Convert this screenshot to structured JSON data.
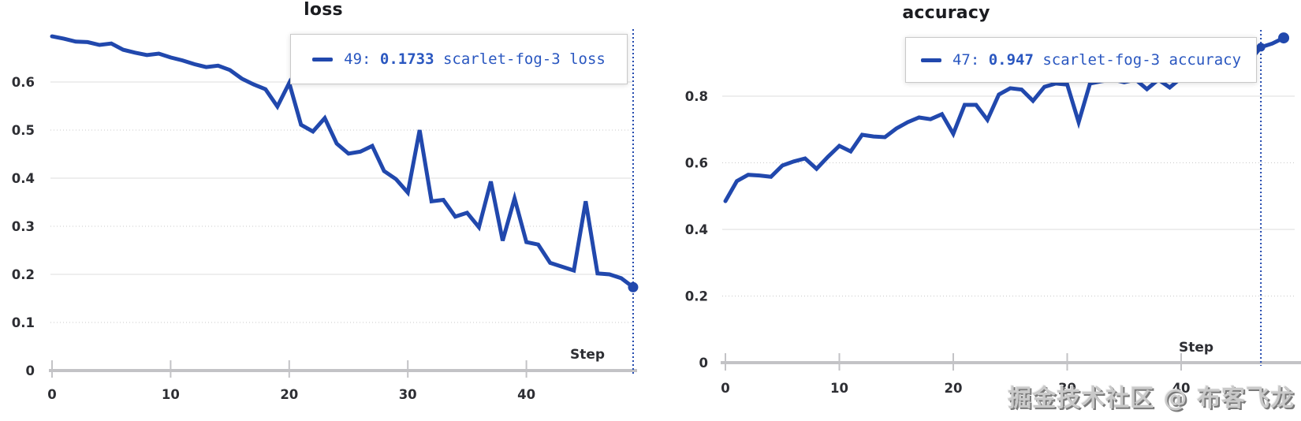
{
  "ui": {
    "watermark": "掘金技术社区 @ 布客飞龙"
  },
  "chart_data": [
    {
      "type": "line",
      "title": "loss",
      "xlabel": "Step",
      "legend_position": "tooltip-overlay",
      "grid": true,
      "color": "#2148ad",
      "xlim": [
        0,
        49.2
      ],
      "ylim": [
        0,
        0.72
      ],
      "xticks": [
        {
          "v": 0,
          "label": "0"
        },
        {
          "v": 10,
          "label": "10"
        },
        {
          "v": 20,
          "label": "20"
        },
        {
          "v": 30,
          "label": "30"
        },
        {
          "v": 40,
          "label": "40"
        }
      ],
      "yticks": [
        {
          "v": 0,
          "label": "0"
        },
        {
          "v": 0.1,
          "label": "0.1"
        },
        {
          "v": 0.2,
          "label": "0.2"
        },
        {
          "v": 0.3,
          "label": "0.3"
        },
        {
          "v": 0.4,
          "label": "0.4"
        },
        {
          "v": 0.5,
          "label": "0.5"
        },
        {
          "v": 0.6,
          "label": "0.6"
        }
      ],
      "crosshair_step": 49,
      "marker_steps": [
        49
      ],
      "tooltip": {
        "prefix": "49: ",
        "value": "0.1733",
        "suffix": " scarlet-fog-3 loss"
      },
      "series": [
        {
          "name": "scarlet-fog-3 loss",
          "x_range": [
            0,
            49
          ],
          "values": [
            0.695,
            0.69,
            0.684,
            0.683,
            0.677,
            0.68,
            0.667,
            0.661,
            0.656,
            0.659,
            0.651,
            0.645,
            0.637,
            0.631,
            0.634,
            0.625,
            0.607,
            0.595,
            0.585,
            0.549,
            0.598,
            0.511,
            0.497,
            0.525,
            0.472,
            0.451,
            0.455,
            0.467,
            0.415,
            0.398,
            0.37,
            0.5,
            0.352,
            0.355,
            0.32,
            0.328,
            0.298,
            0.393,
            0.27,
            0.358,
            0.267,
            0.262,
            0.224,
            0.216,
            0.208,
            0.352,
            0.202,
            0.2,
            0.192,
            0.1733
          ]
        }
      ]
    },
    {
      "type": "line",
      "title": "accuracy",
      "xlabel": "Step",
      "legend_position": "tooltip-overlay",
      "grid": true,
      "color": "#2148ad",
      "xlim": [
        0,
        49.2
      ],
      "ylim": [
        0,
        1.0
      ],
      "xticks": [
        {
          "v": 0,
          "label": "0"
        },
        {
          "v": 10,
          "label": "10"
        },
        {
          "v": 20,
          "label": "20"
        },
        {
          "v": 30,
          "label": "30"
        },
        {
          "v": 40,
          "label": "40"
        }
      ],
      "yticks": [
        {
          "v": 0,
          "label": "0"
        },
        {
          "v": 0.2,
          "label": "0.2"
        },
        {
          "v": 0.4,
          "label": "0.4"
        },
        {
          "v": 0.6,
          "label": "0.6"
        },
        {
          "v": 0.8,
          "label": "0.8"
        }
      ],
      "crosshair_step": 47,
      "marker_steps": [
        47,
        49
      ],
      "tooltip": {
        "prefix": "47: ",
        "value": "0.947",
        "suffix": " scarlet-fog-3 accuracy"
      },
      "series": [
        {
          "name": "scarlet-fog-3 accuracy",
          "x_range": [
            0,
            49
          ],
          "values": [
            0.485,
            0.545,
            0.564,
            0.562,
            0.558,
            0.592,
            0.604,
            0.613,
            0.582,
            0.618,
            0.651,
            0.634,
            0.684,
            0.679,
            0.677,
            0.703,
            0.722,
            0.736,
            0.731,
            0.746,
            0.687,
            0.774,
            0.774,
            0.729,
            0.805,
            0.824,
            0.82,
            0.786,
            0.828,
            0.838,
            0.835,
            0.722,
            0.838,
            0.845,
            0.85,
            0.842,
            0.85,
            0.821,
            0.85,
            0.826,
            0.855,
            0.858,
            0.855,
            0.86,
            0.868,
            0.88,
            0.905,
            0.947,
            0.958,
            0.975
          ]
        }
      ]
    }
  ]
}
